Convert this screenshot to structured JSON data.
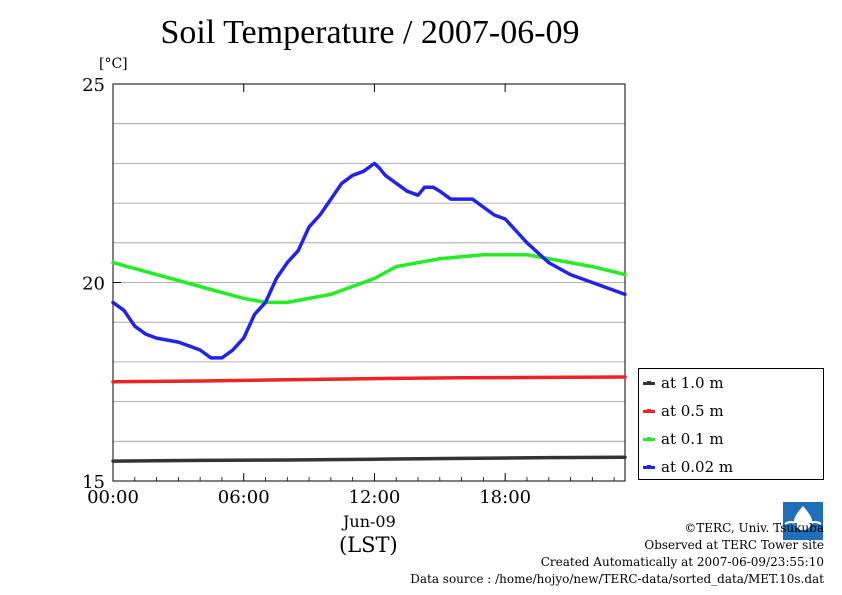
{
  "chart_data": {
    "type": "line",
    "title": "Soil Temperature / 2007-06-09",
    "ylabel": "[°C]",
    "xlabel": "(LST)",
    "date_label": "Jun-09",
    "ylim": [
      15,
      25
    ],
    "xlim": [
      0,
      23.5
    ],
    "y_ticks": [
      "15",
      "20",
      "25"
    ],
    "x_ticks": [
      {
        "value": 0,
        "label": "00:00"
      },
      {
        "value": 6,
        "label": "06:00"
      },
      {
        "value": 12,
        "label": "12:00"
      },
      {
        "value": 18,
        "label": "18:00"
      }
    ],
    "grid": true,
    "legend_position": "right",
    "series": [
      {
        "name": "at 1.0 m",
        "color": "#333333",
        "x": [
          0,
          4,
          8,
          12,
          16,
          20,
          23.5
        ],
        "y": [
          15.5,
          15.52,
          15.53,
          15.55,
          15.57,
          15.59,
          15.6
        ]
      },
      {
        "name": "at 0.5 m",
        "color": "#ee2222",
        "x": [
          0,
          4,
          8,
          12,
          16,
          20,
          23.5
        ],
        "y": [
          17.5,
          17.52,
          17.55,
          17.58,
          17.6,
          17.61,
          17.62
        ]
      },
      {
        "name": "at 0.1 m",
        "color": "#22ee22",
        "x": [
          0,
          2,
          4,
          6,
          7,
          8,
          10,
          12,
          13,
          15,
          17,
          18,
          19,
          20,
          21,
          22,
          23.5
        ],
        "y": [
          20.5,
          20.2,
          19.9,
          19.6,
          19.5,
          19.5,
          19.7,
          20.1,
          20.4,
          20.6,
          20.7,
          20.7,
          20.7,
          20.6,
          20.5,
          20.4,
          20.2
        ]
      },
      {
        "name": "at 0.02 m",
        "color": "#2222ee",
        "x": [
          0,
          0.5,
          1,
          1.5,
          2,
          3,
          3.5,
          4,
          4.5,
          5,
          5.5,
          6,
          6.5,
          7,
          7.5,
          8,
          8.5,
          9,
          9.5,
          10,
          10.5,
          11,
          11.5,
          12,
          12.2,
          12.5,
          13,
          13.5,
          14,
          14.3,
          14.7,
          15,
          15.5,
          16,
          16.5,
          17,
          17.5,
          18,
          19,
          20,
          21,
          22,
          23.5
        ],
        "y": [
          19.5,
          19.3,
          18.9,
          18.7,
          18.6,
          18.5,
          18.4,
          18.3,
          18.1,
          18.1,
          18.3,
          18.6,
          19.2,
          19.5,
          20.1,
          20.5,
          20.8,
          21.4,
          21.7,
          22.1,
          22.5,
          22.7,
          22.8,
          23.0,
          22.9,
          22.7,
          22.5,
          22.3,
          22.2,
          22.4,
          22.4,
          22.3,
          22.1,
          22.1,
          22.1,
          21.9,
          21.7,
          21.6,
          21.0,
          20.5,
          20.2,
          20.0,
          19.7
        ]
      }
    ]
  },
  "credits": {
    "copyright": "©TERC, Univ. Tsukuba",
    "observed": "Observed at TERC Tower site",
    "created": "Created Automatically at 2007-06-09/23:55:10",
    "source": "Data source : /home/hojyo/new/TERC-data/sorted_data/MET.10s.dat"
  },
  "logo": {
    "text": "TERC",
    "color": "#1f6fb8"
  }
}
